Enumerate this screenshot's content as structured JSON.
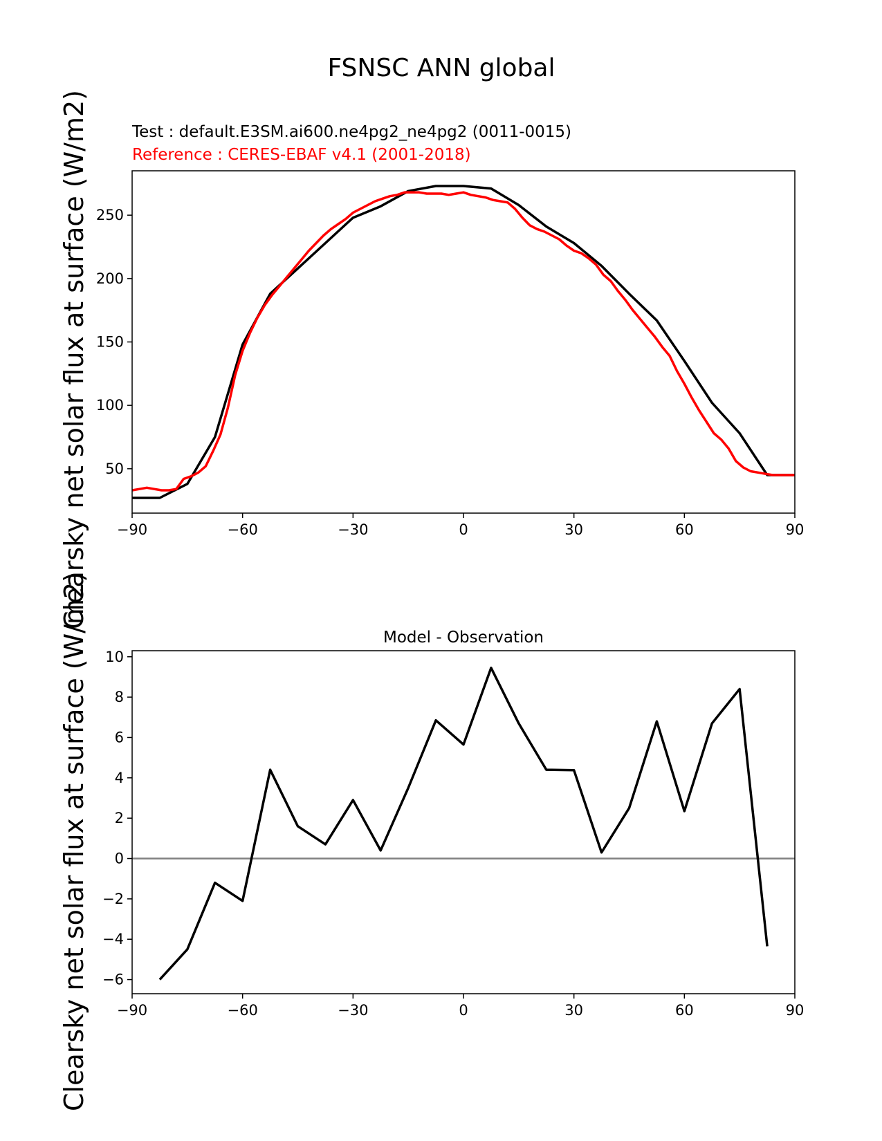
{
  "figure": {
    "title": "FSNSC ANN global"
  },
  "chart_data": [
    {
      "type": "line",
      "subtitle_test": "Test : default.E3SM.ai600.ne4pg2_ne4pg2 (0011-0015)",
      "subtitle_reference": "Reference : CERES-EBAF v4.1 (2001-2018)",
      "ylabel": "Clearsky net solar flux at surface (W/m2)",
      "xlim": [
        -90,
        90
      ],
      "ylim": [
        15,
        285
      ],
      "xticks": [
        -90,
        -60,
        -30,
        0,
        30,
        60,
        90
      ],
      "xtick_labels": [
        "−90",
        "−60",
        "−30",
        "0",
        "30",
        "60",
        "90"
      ],
      "yticks": [
        50,
        100,
        150,
        200,
        250
      ],
      "ytick_labels": [
        "50",
        "100",
        "150",
        "200",
        "250"
      ],
      "grid": false,
      "series": [
        {
          "color": "#000000",
          "x": [
            -90,
            -82.5,
            -75,
            -67.5,
            -60,
            -52.5,
            -45,
            -37.5,
            -30,
            -22.5,
            -15,
            -7.5,
            0,
            7.5,
            15,
            22.5,
            30,
            37.5,
            45,
            52.5,
            60,
            67.5,
            75,
            82.5,
            90
          ],
          "y": [
            27,
            27,
            38,
            75,
            148,
            188,
            208,
            228,
            248,
            257,
            269,
            273,
            273,
            271,
            258,
            241,
            228,
            210,
            188,
            167,
            135,
            102,
            78,
            45,
            45
          ]
        },
        {
          "color": "#ff0000",
          "x": [
            -90,
            -88,
            -86,
            -84,
            -82,
            -80,
            -78,
            -76,
            -74,
            -72,
            -70,
            -68,
            -66,
            -64,
            -62,
            -60,
            -58,
            -56,
            -54,
            -52,
            -50,
            -48,
            -46,
            -44,
            -42,
            -40,
            -38,
            -36,
            -34,
            -32,
            -30,
            -28,
            -26,
            -24,
            -22,
            -20,
            -18,
            -16,
            -14,
            -12,
            -10,
            -8,
            -6,
            -4,
            -2,
            0,
            2,
            4,
            6,
            8,
            10,
            12,
            14,
            16,
            18,
            20,
            22,
            24,
            26,
            28,
            30,
            32,
            34,
            36,
            38,
            40,
            42,
            44,
            46,
            48,
            50,
            52,
            54,
            56,
            58,
            60,
            62,
            64,
            66,
            68,
            70,
            72,
            74,
            76,
            78,
            80,
            82,
            84,
            86,
            88,
            90
          ],
          "y": [
            33,
            34,
            35,
            34,
            33,
            33,
            34,
            42,
            44,
            47,
            52,
            64,
            77,
            98,
            124,
            143,
            157,
            169,
            179,
            187,
            194,
            201,
            208,
            215,
            222,
            228,
            234,
            239,
            243,
            247,
            252,
            255,
            258,
            261,
            263,
            265,
            266,
            268,
            268,
            268,
            267,
            267,
            267,
            266,
            267,
            268,
            266,
            265,
            264,
            262,
            261,
            260,
            255,
            248,
            242,
            239,
            237,
            234,
            231,
            226,
            222,
            220,
            216,
            211,
            203,
            198,
            190,
            183,
            175,
            168,
            161,
            154,
            146,
            139,
            127,
            117,
            106,
            96,
            87,
            78,
            73,
            66,
            56,
            51,
            48,
            47,
            46,
            45,
            45,
            45,
            45
          ]
        }
      ]
    },
    {
      "type": "line",
      "title": "Model - Observation",
      "ylabel": "Clearsky net solar flux at surface (W/m2)",
      "xlim": [
        -90,
        90
      ],
      "ylim": [
        -6.7,
        10.3
      ],
      "xticks": [
        -90,
        -60,
        -30,
        0,
        30,
        60,
        90
      ],
      "xtick_labels": [
        "−90",
        "−60",
        "−30",
        "0",
        "30",
        "60",
        "90"
      ],
      "yticks": [
        -6,
        -4,
        -2,
        0,
        2,
        4,
        6,
        8,
        10
      ],
      "ytick_labels": [
        "−6",
        "−4",
        "−2",
        "0",
        "2",
        "4",
        "6",
        "8",
        "10"
      ],
      "grid": false,
      "zero_line": {
        "y": 0,
        "color": "#808080"
      },
      "series": [
        {
          "color": "#000000",
          "x": [
            -82.5,
            -75,
            -67.5,
            -60,
            -52.5,
            -45,
            -37.5,
            -30,
            -22.5,
            -15,
            -7.5,
            0,
            7.5,
            15,
            22.5,
            30,
            37.5,
            45,
            52.5,
            60,
            67.5,
            75,
            82.5
          ],
          "y": [
            -6.0,
            -4.5,
            -1.2,
            -2.1,
            4.4,
            1.6,
            0.7,
            2.9,
            0.4,
            3.5,
            6.85,
            5.65,
            9.45,
            6.7,
            4.4,
            4.38,
            0.3,
            2.5,
            6.8,
            2.35,
            6.7,
            8.4,
            -4.35
          ]
        }
      ]
    }
  ]
}
